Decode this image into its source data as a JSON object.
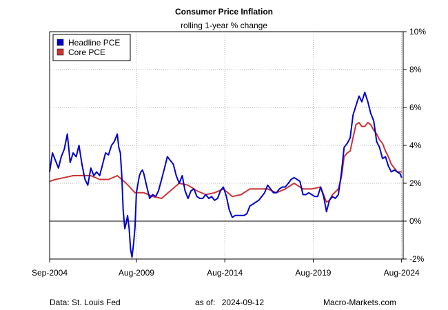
{
  "chart_data": {
    "type": "line",
    "title": "Consumer Price Inflation",
    "subtitle": "rolling 1-year % change",
    "ylabel_side": "right",
    "ylim": [
      -2,
      10
    ],
    "y_ticks": [
      -2,
      0,
      2,
      4,
      6,
      8,
      10
    ],
    "y_tick_labels": [
      "-2%",
      "0%",
      "2%",
      "4%",
      "6%",
      "8%",
      "10%"
    ],
    "xlim": [
      2004.67,
      2024.67
    ],
    "x_ticks": [
      2004.67,
      2009.58,
      2014.58,
      2019.58,
      2024.58
    ],
    "x_tick_labels": [
      "Sep-2004",
      "Aug-2009",
      "Aug-2014",
      "Aug-2019",
      "Aug-2024"
    ],
    "grid": true,
    "zero_line": true,
    "legend_position": "top-left",
    "series": [
      {
        "name": "Headline PCE",
        "color": "#0000cc",
        "x": [
          2004.67,
          2004.83,
          2005.0,
          2005.17,
          2005.33,
          2005.5,
          2005.67,
          2005.83,
          2006.0,
          2006.17,
          2006.33,
          2006.5,
          2006.67,
          2006.83,
          2007.0,
          2007.17,
          2007.33,
          2007.5,
          2007.67,
          2007.83,
          2008.0,
          2008.17,
          2008.33,
          2008.5,
          2008.58,
          2008.67,
          2008.75,
          2008.83,
          2008.92,
          2009.0,
          2009.08,
          2009.17,
          2009.25,
          2009.33,
          2009.42,
          2009.5,
          2009.58,
          2009.67,
          2009.75,
          2009.83,
          2009.92,
          2010.0,
          2010.17,
          2010.33,
          2010.5,
          2010.67,
          2010.83,
          2011.0,
          2011.17,
          2011.33,
          2011.5,
          2011.67,
          2011.83,
          2012.0,
          2012.17,
          2012.33,
          2012.5,
          2012.67,
          2012.83,
          2013.0,
          2013.17,
          2013.33,
          2013.5,
          2013.67,
          2013.83,
          2014.0,
          2014.17,
          2014.33,
          2014.5,
          2014.67,
          2014.83,
          2015.0,
          2015.17,
          2015.33,
          2015.5,
          2015.67,
          2015.83,
          2016.0,
          2016.17,
          2016.33,
          2016.5,
          2016.67,
          2016.83,
          2017.0,
          2017.17,
          2017.33,
          2017.5,
          2017.67,
          2017.83,
          2018.0,
          2018.17,
          2018.33,
          2018.5,
          2018.67,
          2018.83,
          2019.0,
          2019.17,
          2019.33,
          2019.5,
          2019.67,
          2019.83,
          2020.0,
          2020.17,
          2020.33,
          2020.5,
          2020.67,
          2020.83,
          2021.0,
          2021.17,
          2021.33,
          2021.5,
          2021.67,
          2021.83,
          2022.0,
          2022.17,
          2022.33,
          2022.5,
          2022.67,
          2022.83,
          2023.0,
          2023.17,
          2023.33,
          2023.5,
          2023.67,
          2023.83,
          2024.0,
          2024.17,
          2024.33,
          2024.5,
          2024.58
        ],
        "values": [
          2.6,
          3.6,
          3.2,
          2.8,
          3.4,
          3.8,
          4.6,
          3.1,
          3.6,
          3.4,
          4.0,
          3.0,
          2.2,
          1.9,
          2.8,
          2.4,
          2.6,
          2.4,
          3.0,
          3.6,
          3.5,
          4.0,
          4.2,
          4.6,
          3.9,
          3.6,
          2.4,
          0.6,
          -0.4,
          -0.1,
          0.3,
          -0.4,
          -1.5,
          -1.9,
          -1.2,
          -0.3,
          1.5,
          2.0,
          2.4,
          2.6,
          2.7,
          2.5,
          1.8,
          1.2,
          1.4,
          1.3,
          1.6,
          2.2,
          2.8,
          3.4,
          3.2,
          3.0,
          2.4,
          2.0,
          2.4,
          1.6,
          1.2,
          1.6,
          1.7,
          1.3,
          1.2,
          1.2,
          1.4,
          1.2,
          1.3,
          1.1,
          1.2,
          1.6,
          1.8,
          1.3,
          0.6,
          0.2,
          0.3,
          0.3,
          0.3,
          0.3,
          0.4,
          0.8,
          0.9,
          1.0,
          1.1,
          1.3,
          1.5,
          1.9,
          1.7,
          1.5,
          1.5,
          1.7,
          1.8,
          1.8,
          2.0,
          2.2,
          2.3,
          2.2,
          2.1,
          1.4,
          1.4,
          1.5,
          1.4,
          1.3,
          1.3,
          1.8,
          1.3,
          0.5,
          1.1,
          1.3,
          1.2,
          1.4,
          2.5,
          3.9,
          4.1,
          4.4,
          5.6,
          6.1,
          6.6,
          6.3,
          6.8,
          6.3,
          5.7,
          5.3,
          4.2,
          3.9,
          3.3,
          3.4,
          2.9,
          2.6,
          2.7,
          2.6,
          2.5,
          2.3
        ],
        "note": "values are estimated from the figure"
      },
      {
        "name": "Core PCE",
        "color": "#cc3333",
        "x": [
          2004.67,
          2005.0,
          2005.5,
          2006.0,
          2006.5,
          2007.0,
          2007.5,
          2008.0,
          2008.5,
          2009.0,
          2009.5,
          2010.0,
          2010.5,
          2011.0,
          2011.5,
          2012.0,
          2012.5,
          2013.0,
          2013.5,
          2014.0,
          2014.5,
          2015.0,
          2015.5,
          2016.0,
          2016.5,
          2017.0,
          2017.5,
          2018.0,
          2018.5,
          2019.0,
          2019.5,
          2020.0,
          2020.33,
          2020.5,
          2020.67,
          2021.0,
          2021.17,
          2021.33,
          2021.5,
          2021.67,
          2021.83,
          2022.0,
          2022.17,
          2022.33,
          2022.5,
          2022.67,
          2022.83,
          2023.0,
          2023.17,
          2023.33,
          2023.5,
          2023.67,
          2023.83,
          2024.0,
          2024.17,
          2024.33,
          2024.58
        ],
        "values": [
          2.1,
          2.2,
          2.3,
          2.4,
          2.4,
          2.4,
          2.2,
          2.2,
          2.4,
          2.0,
          1.5,
          1.5,
          1.3,
          1.2,
          1.6,
          2.0,
          1.9,
          1.6,
          1.4,
          1.5,
          1.7,
          1.3,
          1.4,
          1.7,
          1.7,
          1.7,
          1.5,
          1.7,
          2.0,
          1.7,
          1.7,
          1.8,
          1.0,
          1.1,
          1.4,
          1.7,
          2.3,
          3.4,
          3.6,
          3.7,
          4.4,
          5.1,
          5.2,
          5.0,
          5.0,
          5.2,
          5.1,
          4.8,
          4.6,
          4.3,
          4.1,
          3.7,
          3.4,
          3.0,
          2.8,
          2.6,
          2.6
        ],
        "note": "values are estimated from the figure"
      }
    ]
  },
  "footer": {
    "source": "Data: St. Louis Fed",
    "asof_label": "as of:",
    "asof_date": "2024-09-12",
    "site": "Macro-Markets.com"
  }
}
